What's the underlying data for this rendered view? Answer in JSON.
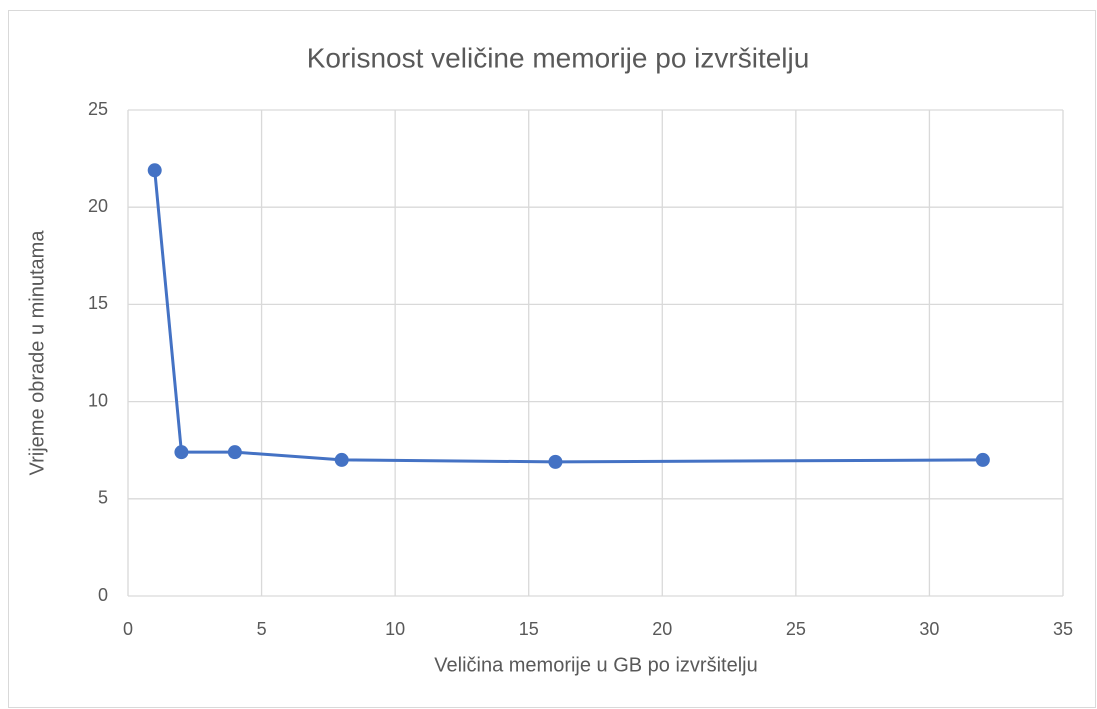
{
  "chart_data": {
    "type": "line",
    "title": "Korisnost veličine memorije po izvršitelju",
    "x_label": "Veličina memorije u GB po izvršitelju",
    "y_label": "Vrijeme obrade u minutama",
    "x": [
      1,
      2,
      4,
      8,
      16,
      32
    ],
    "series": [
      {
        "name": "Vrijeme obrade",
        "color": "#4472c4",
        "values": [
          21.9,
          7.4,
          7.4,
          7.0,
          6.9,
          7.0
        ]
      }
    ],
    "xlim": [
      0,
      35
    ],
    "xticks": [
      0,
      5,
      10,
      15,
      20,
      25,
      30,
      35
    ],
    "ylim": [
      0,
      25
    ],
    "yticks": [
      0,
      5,
      10,
      15,
      20,
      25
    ],
    "grid": true,
    "markers": true
  }
}
